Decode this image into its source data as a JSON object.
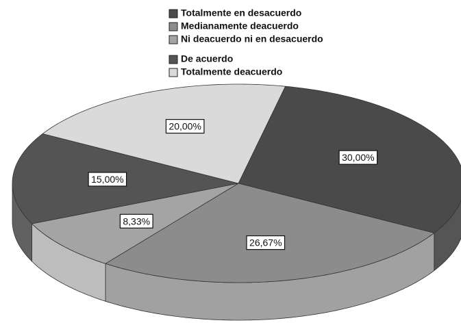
{
  "chart_data": {
    "type": "pie",
    "categories": [
      "Totalmente en desacuerdo",
      "Medianamente deacuerdo",
      "Ni deacuerdo ni en desacuerdo",
      "De acuerdo",
      "Totalmente deacuerdo"
    ],
    "values": [
      30,
      26.67,
      8.33,
      15,
      20
    ],
    "value_labels": [
      "30,00%",
      "26,67%",
      "8,33%",
      "15,00%",
      "20,00%"
    ],
    "colors": [
      "#4a4a4a",
      "#8c8c8c",
      "#a4a4a4",
      "#545454",
      "#dadada"
    ],
    "legend": "top"
  }
}
